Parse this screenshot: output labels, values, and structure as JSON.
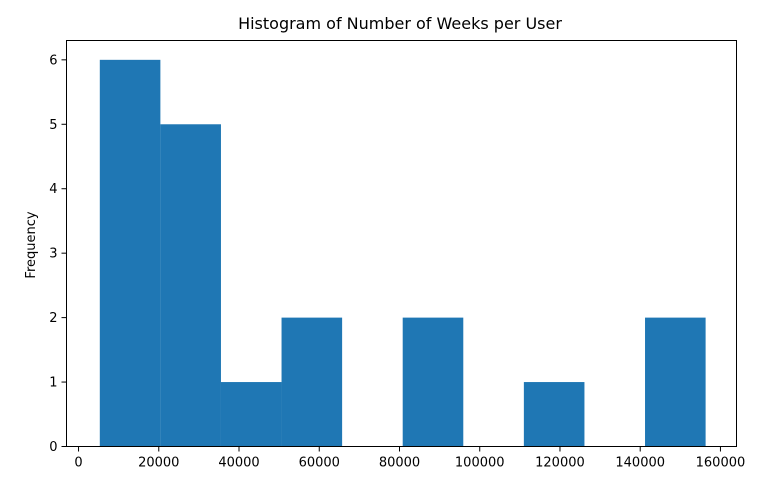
{
  "chart_data": {
    "type": "bar",
    "title": "Histogram of Number of Weeks per User",
    "xlabel": "",
    "ylabel": "Frequency",
    "xlim": [
      -3000,
      164000
    ],
    "ylim": [
      0,
      6.3
    ],
    "grid": false,
    "bar_color": "#1f77b4",
    "bins": [
      {
        "x0": 5300,
        "x1": 20400,
        "value": 6
      },
      {
        "x0": 20400,
        "x1": 35500,
        "value": 5
      },
      {
        "x0": 35500,
        "x1": 50600,
        "value": 1
      },
      {
        "x0": 50600,
        "x1": 65700,
        "value": 2
      },
      {
        "x0": 65700,
        "x1": 80800,
        "value": 0
      },
      {
        "x0": 80800,
        "x1": 95900,
        "value": 2
      },
      {
        "x0": 95900,
        "x1": 111000,
        "value": 0
      },
      {
        "x0": 111000,
        "x1": 126100,
        "value": 1
      },
      {
        "x0": 126100,
        "x1": 141200,
        "value": 0
      },
      {
        "x0": 141200,
        "x1": 156300,
        "value": 2
      }
    ],
    "x_ticks": [
      {
        "value": 0,
        "label": "0"
      },
      {
        "value": 20000,
        "label": "20000"
      },
      {
        "value": 40000,
        "label": "40000"
      },
      {
        "value": 60000,
        "label": "60000"
      },
      {
        "value": 80000,
        "label": "80000"
      },
      {
        "value": 100000,
        "label": "100000"
      },
      {
        "value": 120000,
        "label": "120000"
      },
      {
        "value": 140000,
        "label": "140000"
      },
      {
        "value": 160000,
        "label": "160000"
      }
    ],
    "y_ticks": [
      {
        "value": 0,
        "label": "0"
      },
      {
        "value": 1,
        "label": "1"
      },
      {
        "value": 2,
        "label": "2"
      },
      {
        "value": 3,
        "label": "3"
      },
      {
        "value": 4,
        "label": "4"
      },
      {
        "value": 5,
        "label": "5"
      },
      {
        "value": 6,
        "label": "6"
      }
    ]
  }
}
